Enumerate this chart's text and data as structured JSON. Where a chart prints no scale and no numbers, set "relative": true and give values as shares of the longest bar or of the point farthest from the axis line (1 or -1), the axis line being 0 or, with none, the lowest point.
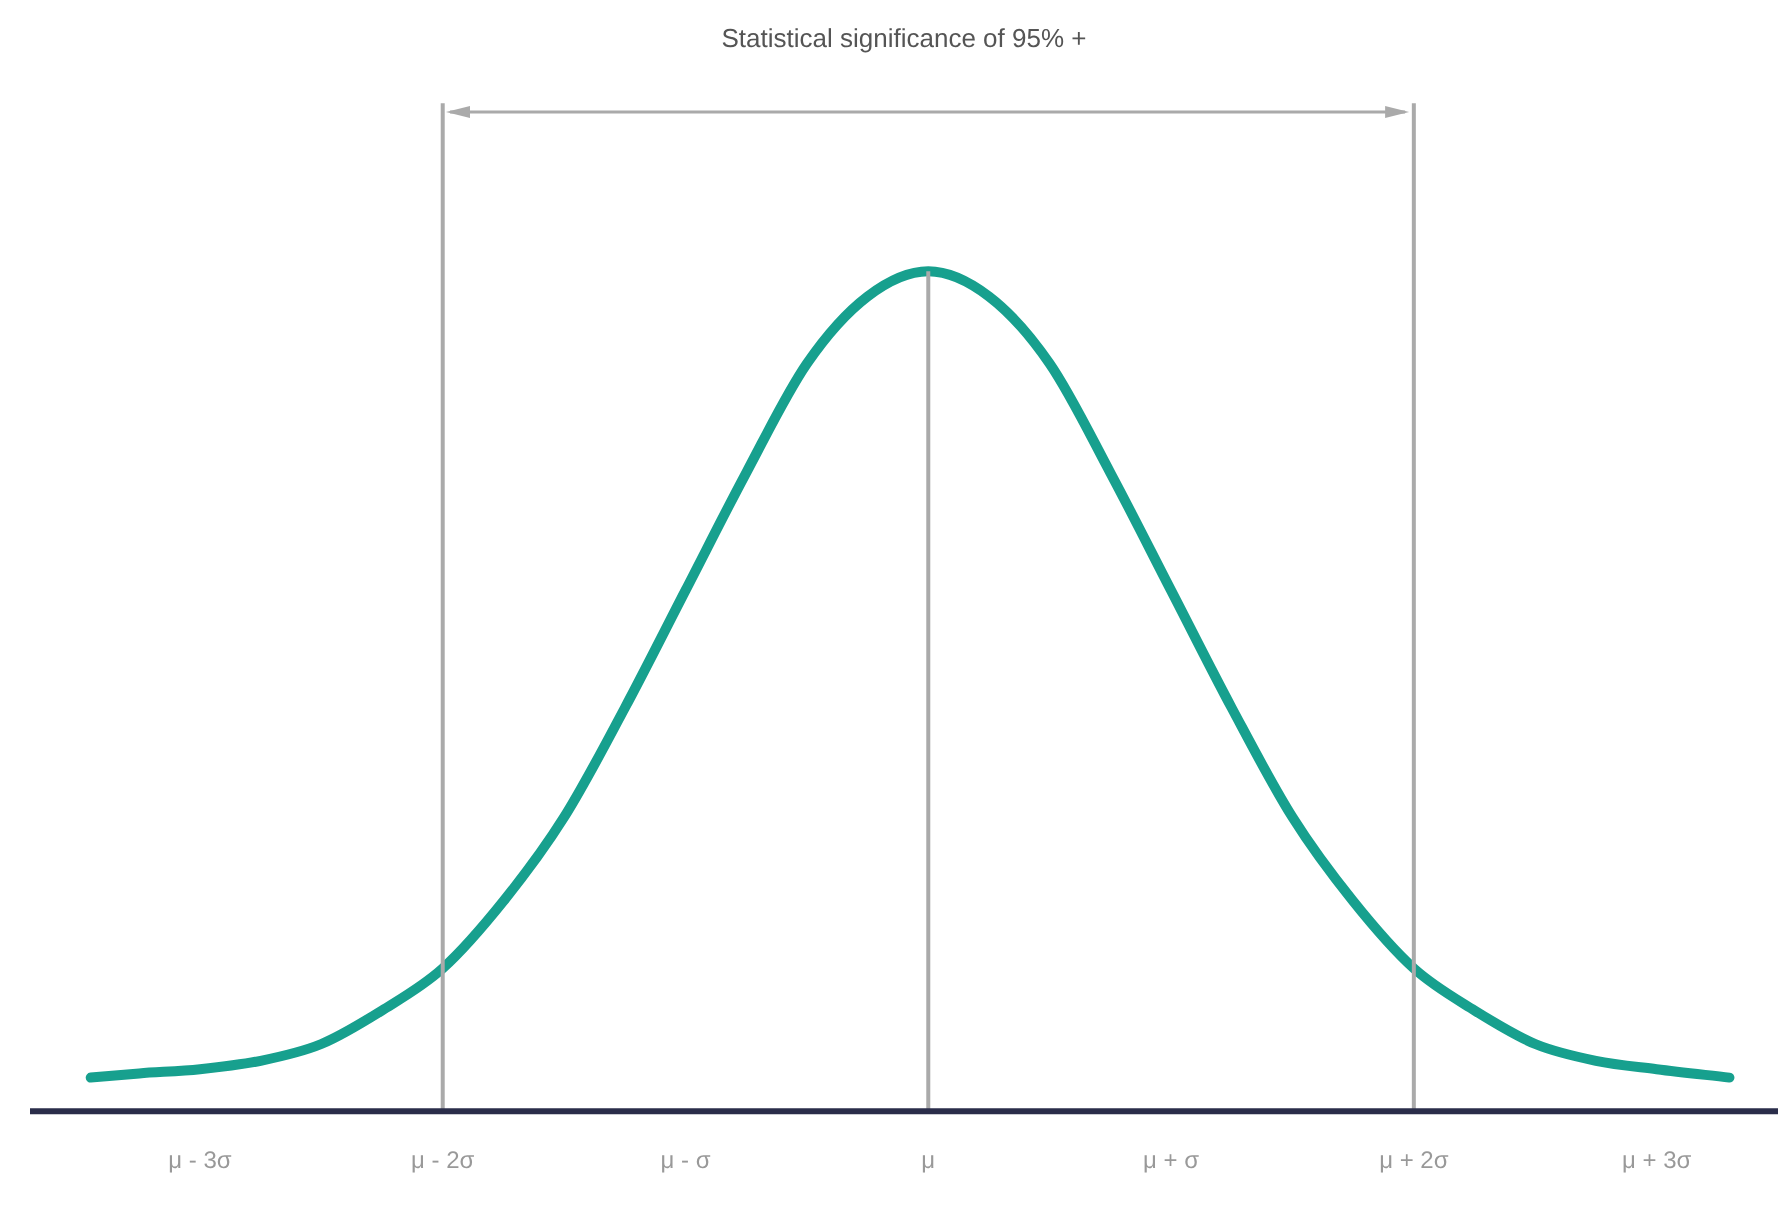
{
  "chart_data": {
    "type": "line",
    "relative": true,
    "title": "Statistical significance of 95% +",
    "x": [
      -3.45,
      -3.25,
      -3,
      -2.75,
      -2.5,
      -2.25,
      -2,
      -1.75,
      -1.5,
      -1.25,
      -1,
      -0.75,
      -0.5,
      -0.25,
      0,
      0.25,
      0.5,
      0.75,
      1,
      1.25,
      1.5,
      1.75,
      2,
      2.25,
      2.5,
      2.75,
      3,
      3.3
    ],
    "series": [
      {
        "color": "#17a08e",
        "values": [
          0.04,
          0.045,
          0.05,
          0.06,
          0.08,
          0.12,
          0.17,
          0.25,
          0.35,
          0.48,
          0.62,
          0.76,
          0.89,
          0.97,
          1,
          0.97,
          0.89,
          0.76,
          0.62,
          0.48,
          0.35,
          0.25,
          0.17,
          0.12,
          0.08,
          0.06,
          0.05,
          0.04
        ]
      }
    ],
    "xlim": [
      -3.7,
      3.5
    ],
    "xticks": [
      {
        "value": -3,
        "label": "μ - 3σ"
      },
      {
        "value": -2,
        "label": "μ - 2σ"
      },
      {
        "value": -1,
        "label": "μ - σ"
      },
      {
        "value": 0,
        "label": "μ"
      },
      {
        "value": 1,
        "label": "μ + σ"
      },
      {
        "value": 2,
        "label": "μ + 2σ"
      },
      {
        "value": 3,
        "label": "μ + 3σ"
      }
    ],
    "ref_lines": [
      {
        "axis": "x",
        "value": -2,
        "color": "#aaaaaa"
      },
      {
        "axis": "x",
        "value": 0,
        "color": "#aaaaaa"
      },
      {
        "axis": "x",
        "value": 2,
        "color": "#aaaaaa"
      }
    ],
    "grid": false,
    "legend": false,
    "marker": "none",
    "line_style": "solid"
  }
}
